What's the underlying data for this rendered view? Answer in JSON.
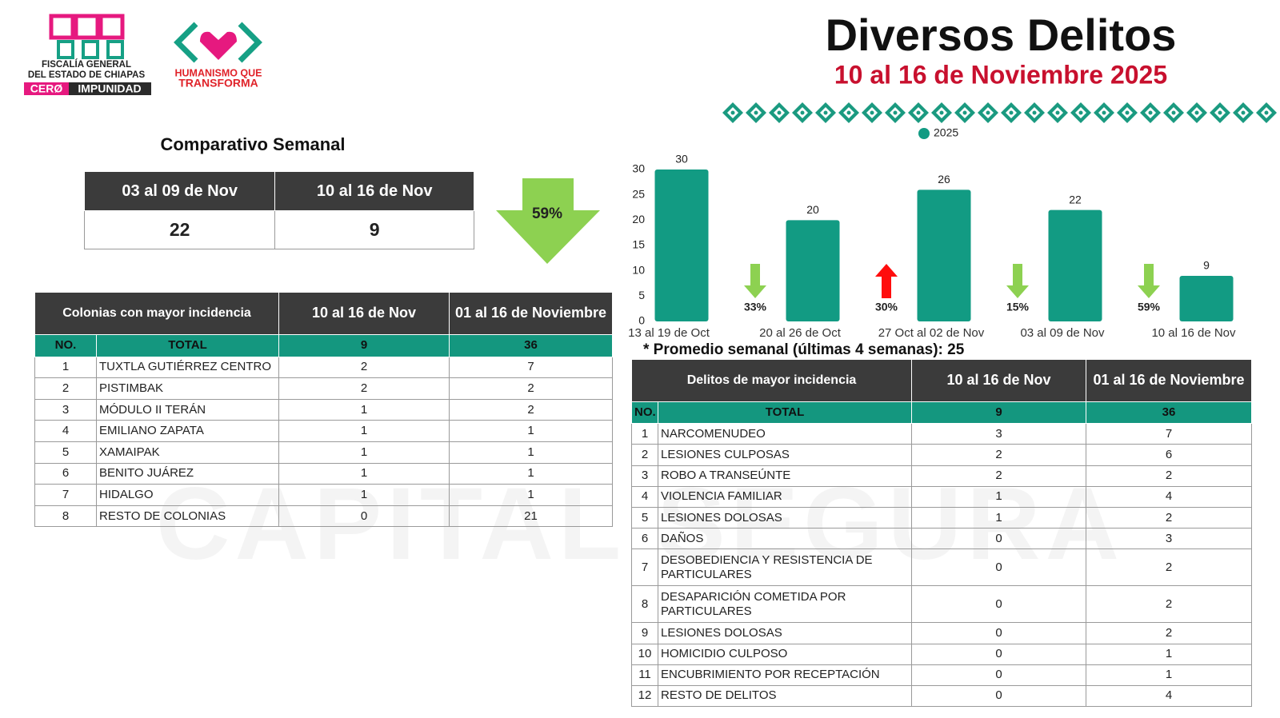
{
  "header": {
    "logo_lines": [
      "FISCALÍA GENERAL",
      "DEL ESTADO DE CHIAPAS"
    ],
    "logo_badge": [
      "CERØ",
      "IMPUNIDAD"
    ],
    "logo2_lines": [
      "HUMANISMO QUE",
      "TRANSFORMA"
    ],
    "title": "Diversos Delitos",
    "subtitle": "10 al 16 de Noviembre 2025"
  },
  "watermark": "CAPITAL SEGURA",
  "weekly_comparison": {
    "title": "Comparativo Semanal",
    "headers": [
      "03 al 09 de Nov",
      "10 al 16 de Nov"
    ],
    "values": [
      22,
      9
    ],
    "change": "59%"
  },
  "colonias_table": {
    "headers": [
      "Colonias  con mayor incidencia",
      "10 al 16 de Nov",
      "01 al 16 de Noviembre"
    ],
    "total_row": [
      "NO.",
      "TOTAL",
      9,
      36
    ],
    "rows": [
      [
        1,
        "TUXTLA GUTIÉRREZ CENTRO",
        2,
        7
      ],
      [
        2,
        "PISTIMBAK",
        2,
        2
      ],
      [
        3,
        "MÓDULO II TERÁN",
        1,
        2
      ],
      [
        4,
        "EMILIANO ZAPATA",
        1,
        1
      ],
      [
        5,
        "XAMAIPAK",
        1,
        1
      ],
      [
        6,
        "BENITO JUÁREZ",
        1,
        1
      ],
      [
        7,
        "HIDALGO",
        1,
        1
      ],
      [
        8,
        "RESTO DE COLONIAS",
        0,
        21
      ]
    ]
  },
  "chart_data": {
    "type": "bar",
    "categories": [
      "13 al 19 de Oct",
      "20 al 26 de Oct",
      "27 Oct al 02 de Nov",
      "03 al 09 de Nov",
      "10 al 16 de Nov"
    ],
    "series": [
      {
        "name": "2025",
        "color": "#129b83",
        "values": [
          30,
          20,
          26,
          22,
          9
        ]
      }
    ],
    "ylim": [
      0,
      30
    ],
    "yticks": [
      0,
      5,
      10,
      15,
      20,
      25,
      30
    ],
    "grid": false,
    "legend": "top",
    "changes": [
      {
        "label": "33%",
        "direction": "down"
      },
      {
        "label": "30%",
        "direction": "up"
      },
      {
        "label": "15%",
        "direction": "down"
      },
      {
        "label": "59%",
        "direction": "down"
      }
    ],
    "change_colors": {
      "down": "#8dd151",
      "up": "#ff0d0d"
    },
    "footnote": "* Promedio semanal (últimas 4 semanas): 25"
  },
  "delitos_table": {
    "headers": [
      "Delitos de mayor incidencia",
      "10 al 16 de Nov",
      "01 al 16 de Noviembre"
    ],
    "total_row": [
      "NO.",
      "TOTAL",
      9,
      36
    ],
    "rows": [
      [
        1,
        "NARCOMENUDEO",
        3,
        7
      ],
      [
        2,
        "LESIONES CULPOSAS",
        2,
        6
      ],
      [
        3,
        "ROBO A TRANSEÚNTE",
        2,
        2
      ],
      [
        4,
        "VIOLENCIA FAMILIAR",
        1,
        4
      ],
      [
        5,
        "LESIONES DOLOSAS",
        1,
        2
      ],
      [
        6,
        "DAÑOS",
        0,
        3
      ],
      [
        7,
        "DESOBEDIENCIA Y RESISTENCIA DE PARTICULARES",
        0,
        2
      ],
      [
        8,
        "DESAPARICIÓN COMETIDA POR PARTICULARES",
        0,
        2
      ],
      [
        9,
        "LESIONES DOLOSAS",
        0,
        2
      ],
      [
        10,
        "HOMICIDIO CULPOSO",
        0,
        1
      ],
      [
        11,
        "ENCUBRIMIENTO POR RECEPTACIÓN",
        0,
        1
      ],
      [
        12,
        "RESTO DE DELITOS",
        0,
        4
      ]
    ]
  }
}
